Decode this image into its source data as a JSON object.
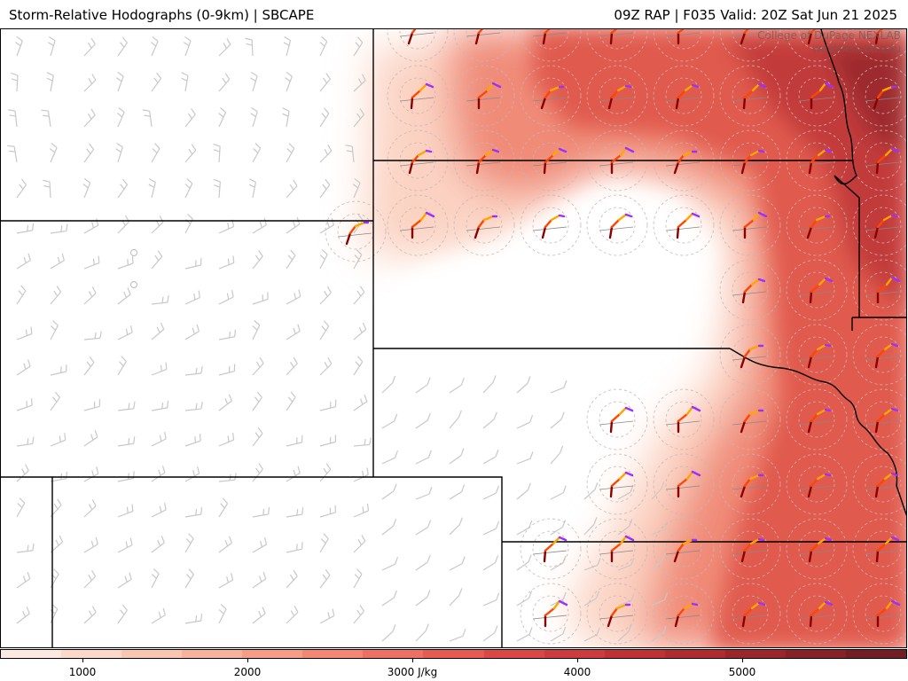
{
  "header": {
    "left_title": "Storm-Relative Hodographs (0-9km) | SBCAPE",
    "right_title": "09Z RAP | F035 Valid: 20Z Sat Jun 21 2025"
  },
  "watermark": {
    "line1": "College of DuPage NEXLAB",
    "line2": "weather.cod.edu"
  },
  "colorbar": {
    "unit": "J/kg",
    "labels": [
      "1000",
      "2000",
      "3000 J/kg",
      "4000",
      "5000"
    ],
    "label_values": [
      1000,
      2000,
      3000,
      4000,
      5000
    ],
    "range": [
      500,
      6000
    ],
    "colors": [
      "#fde9e0",
      "#fcd8c8",
      "#fbc6b0",
      "#f9b29a",
      "#f79d85",
      "#f48772",
      "#ef7060",
      "#e75a50",
      "#dc4745",
      "#cf3a3c",
      "#c13134",
      "#b02a30",
      "#9c252b",
      "#882127",
      "#731d24"
    ]
  },
  "map": {
    "cape_fill_color": "#e85a4f",
    "border_color": "#000000",
    "river_color": "#000000",
    "barb_color": "#c8c8c8",
    "hodograph_colors": [
      "#8b0000",
      "#ff4500",
      "#ffa500",
      "#9b30ff"
    ]
  }
}
